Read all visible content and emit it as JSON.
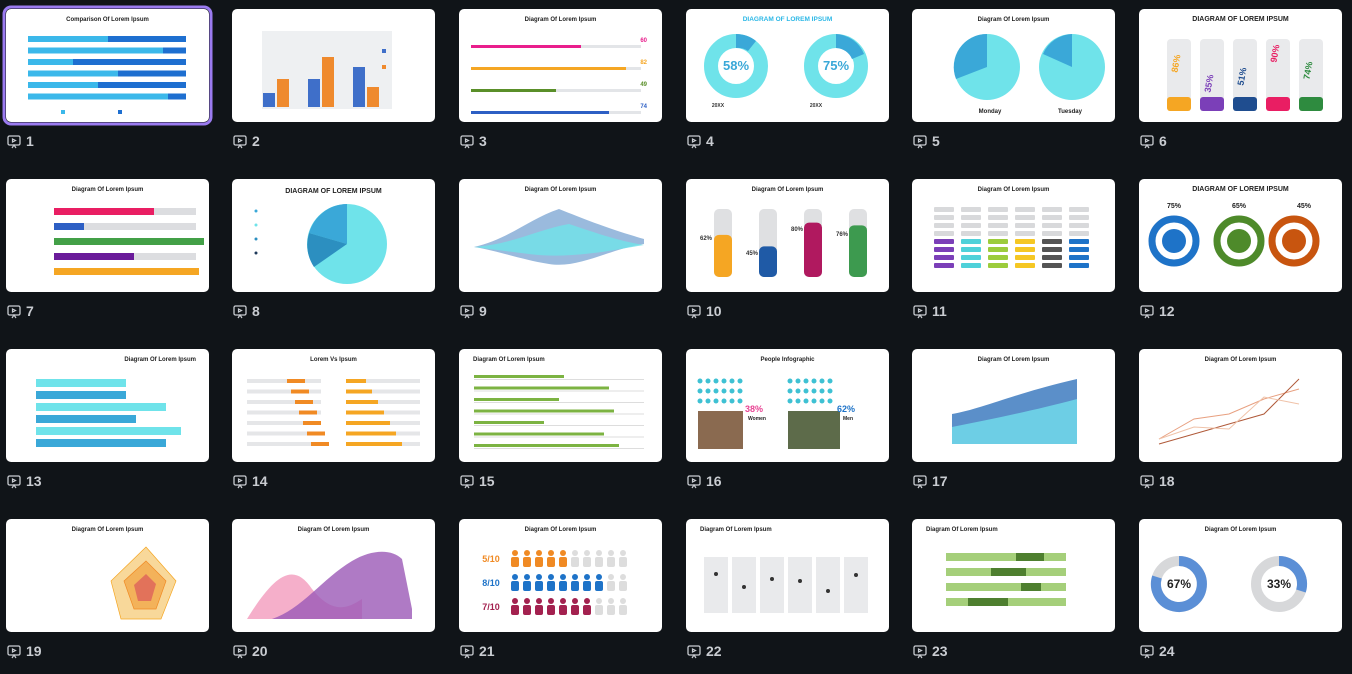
{
  "slides": [
    {
      "number": "1",
      "title": "Comparison Of Lorem Ipsum",
      "labels": []
    },
    {
      "number": "2",
      "title": null,
      "labels": []
    },
    {
      "number": "3",
      "title": "Diagram Of Lorem Ipsum",
      "labels": [
        "60",
        "82",
        "49",
        "74"
      ]
    },
    {
      "number": "4",
      "title": "DIAGRAM OF LOREM IPSUM",
      "labels": [
        "58%",
        "75%",
        "20XX",
        "20XX"
      ]
    },
    {
      "number": "5",
      "title": "Diagram Of Lorem Ipsum",
      "labels": [
        "Monday",
        "Tuesday"
      ]
    },
    {
      "number": "6",
      "title": "DIAGRAM OF LOREM IPSUM",
      "labels": [
        "86%",
        "35%",
        "51%",
        "90%",
        "74%"
      ]
    },
    {
      "number": "7",
      "title": "Diagram Of Lorem Ipsum",
      "labels": []
    },
    {
      "number": "8",
      "title": "DIAGRAM OF LOREM IPSUM",
      "labels": []
    },
    {
      "number": "9",
      "title": "Diagram Of Lorem Ipsum",
      "labels": []
    },
    {
      "number": "10",
      "title": "Diagram Of Lorem Ipsum",
      "labels": [
        "62%",
        "45%",
        "80%",
        "76%"
      ]
    },
    {
      "number": "11",
      "title": "Diagram Of Lorem Ipsum",
      "labels": []
    },
    {
      "number": "12",
      "title": "DIAGRAM OF LOREM IPSUM",
      "labels": [
        "75%",
        "65%",
        "45%"
      ]
    },
    {
      "number": "13",
      "title": "Diagram Of Lorem Ipsum",
      "labels": []
    },
    {
      "number": "14",
      "title": "Lorem Vs Ipsum",
      "labels": []
    },
    {
      "number": "15",
      "title": "Diagram Of Lorem Ipsum",
      "labels": []
    },
    {
      "number": "16",
      "title": "People Infographic",
      "labels": [
        "38%",
        "Women",
        "62%",
        "Men"
      ]
    },
    {
      "number": "17",
      "title": "Diagram Of Lorem Ipsum",
      "labels": []
    },
    {
      "number": "18",
      "title": "Diagram Of Lorem Ipsum",
      "labels": []
    },
    {
      "number": "19",
      "title": "Diagram Of Lorem Ipsum",
      "labels": []
    },
    {
      "number": "20",
      "title": "Diagram Of Lorem Ipsum",
      "labels": []
    },
    {
      "number": "21",
      "title": "Diagram Of Lorem Ipsum",
      "labels": [
        "5/10",
        "8/10",
        "7/10"
      ]
    },
    {
      "number": "22",
      "title": "Diagram Of Lorem Ipsum",
      "labels": []
    },
    {
      "number": "23",
      "title": "Diagram Of Lorem Ipsum",
      "labels": []
    },
    {
      "number": "24",
      "title": "Diagram Of Lorem Ipsum",
      "labels": [
        "67%",
        "33%"
      ]
    }
  ]
}
